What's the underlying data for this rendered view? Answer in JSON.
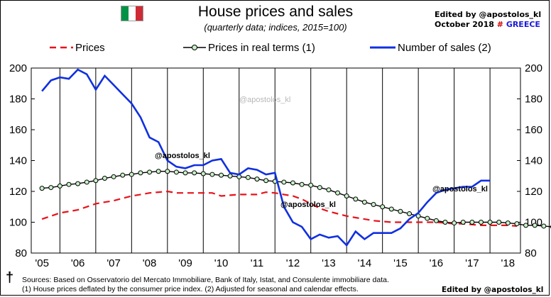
{
  "header": {
    "title": "House prices and sales",
    "subtitle": "(quarterly data; indices, 2015=100)",
    "edited_by": "Edited by  @apostolos_kl",
    "date": "October 2018",
    "hash": "#",
    "country": "GREECE",
    "flag_colors": [
      "#009246",
      "#ffffff",
      "#ce2b37"
    ]
  },
  "footer": {
    "dagger": "†",
    "sources": "Sources: Based on Osservatorio del Mercato Immobiliare, Bank of Italy, Istat, and Consulente immobiliare data.",
    "notes": "(1) House prices deflated by the consumer price index. (2) Adjusted for seasonal and calendar effects.",
    "edited_by": "Edited by  @apostolos_kl"
  },
  "chart_data": {
    "type": "line",
    "title": "House prices and sales",
    "subtitle": "(quarterly data; indices, 2015=100)",
    "x_tick_labels": [
      "'05",
      "'06",
      "'07",
      "'08",
      "'09",
      "'10",
      "'11",
      "'12",
      "'13",
      "'14",
      "'15",
      "'16",
      "'17",
      "'18"
    ],
    "ylim": [
      80,
      200
    ],
    "y_ticks": [
      80,
      100,
      120,
      140,
      160,
      180,
      200
    ],
    "grid": "vertical lines between years",
    "legend_position": "top",
    "watermarks": [
      "@apostolos_kl",
      "@apostolos_kl",
      "@apostolos_kl",
      "@apostolos_kl"
    ],
    "series": [
      {
        "name": "Prices",
        "style": "dashed",
        "color": "#e8121a",
        "points": [
          [
            2005.0,
            102
          ],
          [
            2005.25,
            104
          ],
          [
            2005.5,
            106
          ],
          [
            2005.75,
            107
          ],
          [
            2006.0,
            108
          ],
          [
            2006.25,
            110
          ],
          [
            2006.5,
            112
          ],
          [
            2006.75,
            113
          ],
          [
            2007.0,
            114
          ],
          [
            2007.25,
            115.5
          ],
          [
            2007.5,
            117
          ],
          [
            2007.75,
            118
          ],
          [
            2008.0,
            119
          ],
          [
            2008.25,
            119.5
          ],
          [
            2008.5,
            120
          ],
          [
            2008.75,
            119
          ],
          [
            2009.0,
            119
          ],
          [
            2009.25,
            119
          ],
          [
            2009.5,
            119
          ],
          [
            2009.75,
            119
          ],
          [
            2010.0,
            117
          ],
          [
            2010.25,
            117.5
          ],
          [
            2010.5,
            118
          ],
          [
            2010.75,
            118
          ],
          [
            2011.0,
            118
          ],
          [
            2011.25,
            119.5
          ],
          [
            2011.5,
            119
          ],
          [
            2011.75,
            118
          ],
          [
            2012.0,
            117
          ],
          [
            2012.25,
            115
          ],
          [
            2012.5,
            112
          ],
          [
            2012.75,
            109
          ],
          [
            2013.0,
            107
          ],
          [
            2013.25,
            105.5
          ],
          [
            2013.5,
            104
          ],
          [
            2013.75,
            103
          ],
          [
            2014.0,
            102
          ],
          [
            2014.25,
            101
          ],
          [
            2014.5,
            100.5
          ],
          [
            2014.75,
            100
          ],
          [
            2015.0,
            100
          ],
          [
            2015.25,
            100
          ],
          [
            2015.5,
            100
          ],
          [
            2015.75,
            100
          ],
          [
            2016.0,
            100
          ],
          [
            2016.25,
            99.5
          ],
          [
            2016.5,
            99
          ],
          [
            2016.75,
            99
          ],
          [
            2017.0,
            98.5
          ],
          [
            2017.25,
            98
          ],
          [
            2017.5,
            98
          ],
          [
            2017.75,
            98
          ],
          [
            2018.0,
            98
          ],
          [
            2018.25,
            97.5
          ]
        ]
      },
      {
        "name": "Prices in real terms (1)",
        "style": "line-with-markers",
        "color": "#000000",
        "marker_fill": "#c8f0c8",
        "points": [
          [
            2005.0,
            122
          ],
          [
            2005.25,
            122.5
          ],
          [
            2005.5,
            123.5
          ],
          [
            2005.75,
            124.5
          ],
          [
            2006.0,
            125
          ],
          [
            2006.25,
            126
          ],
          [
            2006.5,
            127
          ],
          [
            2006.75,
            128.5
          ],
          [
            2007.0,
            129.5
          ],
          [
            2007.25,
            130.5
          ],
          [
            2007.5,
            131
          ],
          [
            2007.75,
            132
          ],
          [
            2008.0,
            132.5
          ],
          [
            2008.25,
            133
          ],
          [
            2008.5,
            133
          ],
          [
            2008.75,
            132.5
          ],
          [
            2009.0,
            132
          ],
          [
            2009.25,
            132
          ],
          [
            2009.5,
            131.5
          ],
          [
            2009.75,
            131
          ],
          [
            2010.0,
            130.5
          ],
          [
            2010.25,
            130
          ],
          [
            2010.5,
            129.5
          ],
          [
            2010.75,
            129
          ],
          [
            2011.0,
            128
          ],
          [
            2011.25,
            127
          ],
          [
            2011.5,
            126.5
          ],
          [
            2011.75,
            126
          ],
          [
            2012.0,
            125.5
          ],
          [
            2012.25,
            124.5
          ],
          [
            2012.5,
            124
          ],
          [
            2012.75,
            122.5
          ],
          [
            2013.0,
            121
          ],
          [
            2013.25,
            119
          ],
          [
            2013.5,
            117
          ],
          [
            2013.75,
            115
          ],
          [
            2014.0,
            113
          ],
          [
            2014.25,
            111.5
          ],
          [
            2014.5,
            110
          ],
          [
            2014.75,
            108.5
          ],
          [
            2015.0,
            107
          ],
          [
            2015.25,
            105.5
          ],
          [
            2015.5,
            104
          ],
          [
            2015.75,
            102.5
          ],
          [
            2016.0,
            101
          ],
          [
            2016.25,
            100
          ],
          [
            2016.5,
            99.5
          ],
          [
            2016.75,
            100
          ],
          [
            2017.0,
            100
          ],
          [
            2017.25,
            100
          ],
          [
            2017.5,
            100
          ],
          [
            2017.75,
            100
          ],
          [
            2018.0,
            99.5
          ],
          [
            2018.25,
            99
          ],
          [
            2018.5,
            98
          ],
          [
            2018.75,
            98
          ],
          [
            2019.0,
            97.5
          ],
          [
            2019.25,
            97
          ],
          [
            2019.5,
            97
          ],
          [
            2019.75,
            96.5
          ]
        ]
      },
      {
        "name": "Number of sales (2)",
        "style": "line",
        "color": "#1030e0",
        "points": [
          [
            2005.0,
            185
          ],
          [
            2005.25,
            192
          ],
          [
            2005.5,
            194
          ],
          [
            2005.75,
            193
          ],
          [
            2006.0,
            199
          ],
          [
            2006.25,
            196
          ],
          [
            2006.5,
            186
          ],
          [
            2006.75,
            195
          ],
          [
            2007.0,
            189
          ],
          [
            2007.25,
            183
          ],
          [
            2007.5,
            177
          ],
          [
            2007.75,
            168
          ],
          [
            2008.0,
            155
          ],
          [
            2008.25,
            152
          ],
          [
            2008.5,
            140
          ],
          [
            2008.75,
            136
          ],
          [
            2009.0,
            135
          ],
          [
            2009.25,
            137
          ],
          [
            2009.5,
            137
          ],
          [
            2009.75,
            140
          ],
          [
            2010.0,
            141
          ],
          [
            2010.25,
            132
          ],
          [
            2010.5,
            131
          ],
          [
            2010.75,
            135
          ],
          [
            2011.0,
            134
          ],
          [
            2011.25,
            131
          ],
          [
            2011.5,
            132
          ],
          [
            2011.75,
            110
          ],
          [
            2012.0,
            100
          ],
          [
            2012.25,
            97
          ],
          [
            2012.5,
            89
          ],
          [
            2012.75,
            92
          ],
          [
            2013.0,
            90
          ],
          [
            2013.25,
            91
          ],
          [
            2013.5,
            85
          ],
          [
            2013.75,
            94
          ],
          [
            2014.0,
            89
          ],
          [
            2014.25,
            93
          ],
          [
            2014.5,
            93
          ],
          [
            2014.75,
            93
          ],
          [
            2015.0,
            96
          ],
          [
            2015.25,
            102
          ],
          [
            2015.5,
            106
          ],
          [
            2015.75,
            113
          ],
          [
            2016.0,
            119
          ],
          [
            2016.25,
            121
          ],
          [
            2016.5,
            122
          ],
          [
            2016.75,
            123
          ],
          [
            2017.0,
            123
          ],
          [
            2017.25,
            127
          ],
          [
            2017.5,
            127
          ]
        ]
      }
    ]
  }
}
